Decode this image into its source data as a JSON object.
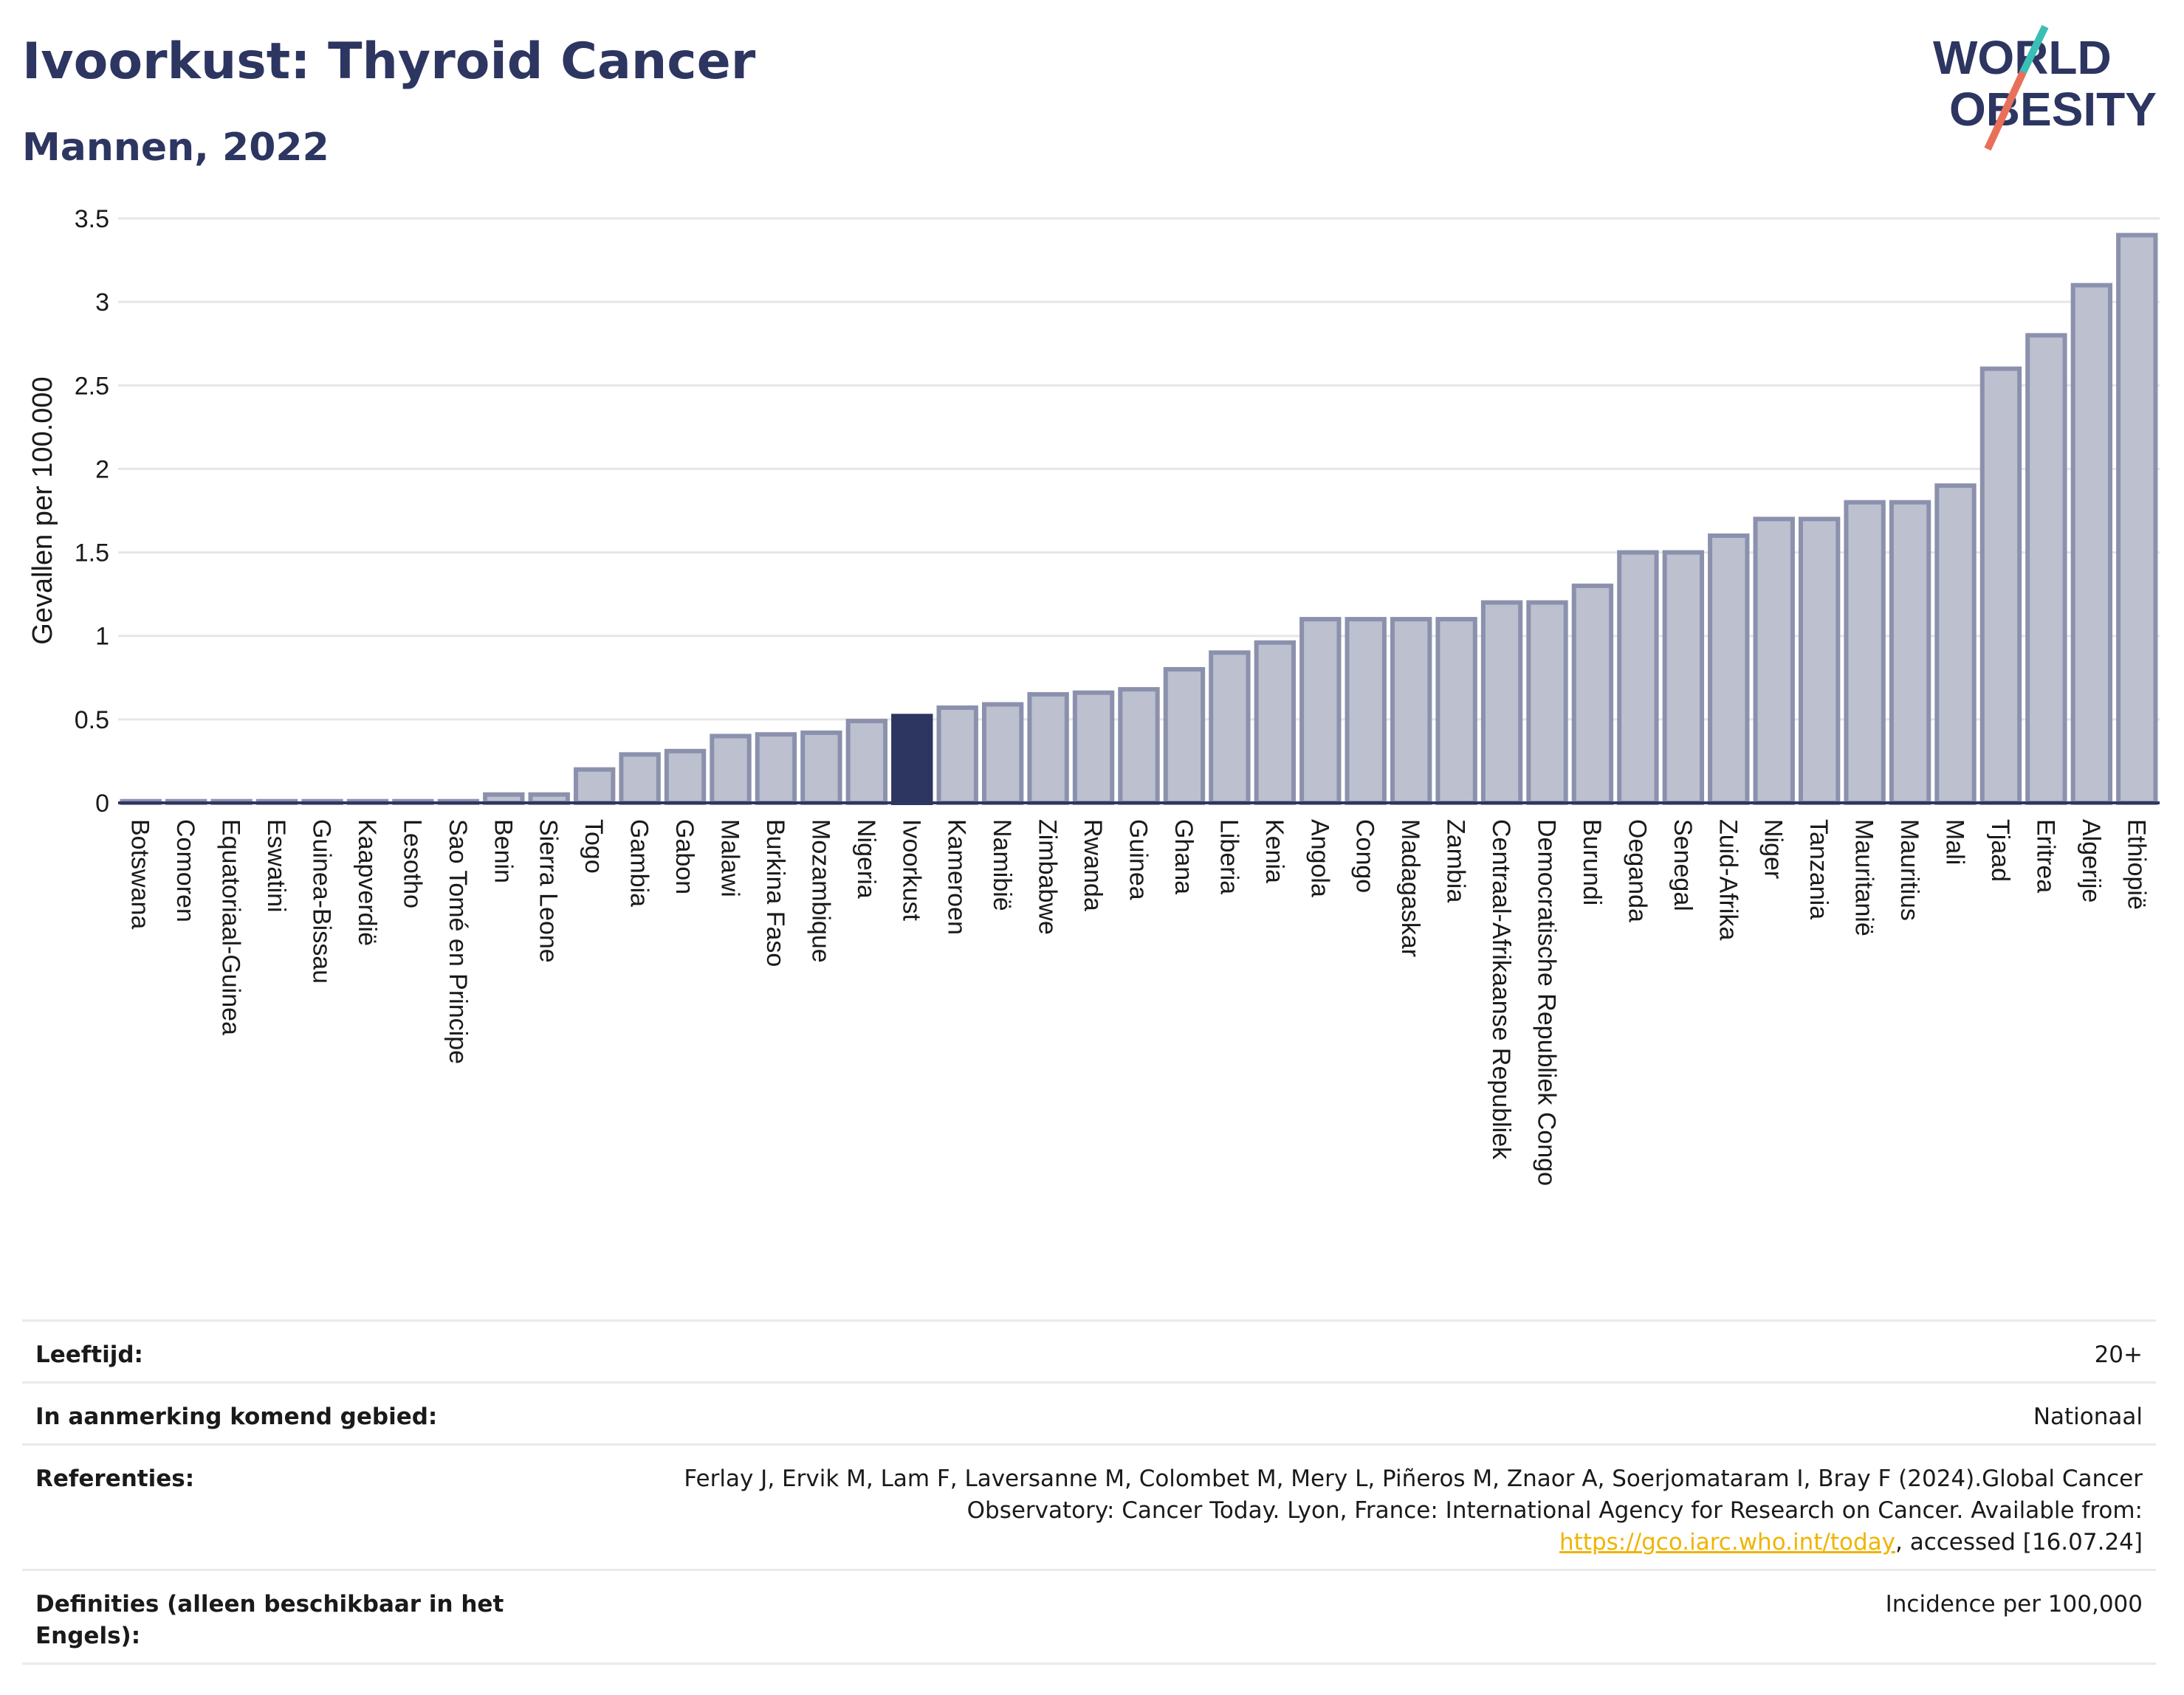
{
  "header": {
    "title": "Ivoorkust: Thyroid Cancer",
    "subtitle": "Mannen, 2022"
  },
  "logo": {
    "line1": "WORLD",
    "line2": "OBESITY",
    "colors": {
      "text": "#2d3561",
      "slash_red": "#e8705a",
      "slash_teal": "#3bbfb5"
    }
  },
  "colors": {
    "bar": "#bcc0cf",
    "bar_stroke": "#8b91ad",
    "highlight": "#2d3561",
    "grid": "#e6e6ea",
    "axis": "#2d3561"
  },
  "chart_data": {
    "type": "bar",
    "ylabel": "Gevallen per 100.000",
    "xlabel": "",
    "ylim": [
      0,
      3.5
    ],
    "yticks": [
      0,
      0.5,
      1,
      1.5,
      2,
      2.5,
      3,
      3.5
    ],
    "ytick_labels": [
      "0",
      "0.5",
      "1",
      "1.5",
      "2",
      "2.5",
      "3",
      "3.5"
    ],
    "grid": true,
    "highlight": "Ivoorkust",
    "categories": [
      "Botswana",
      "Comoren",
      "Equatoriaal-Guinea",
      "Eswatini",
      "Guinea-Bissau",
      "Kaapverdië",
      "Lesotho",
      "Sao Tomé en Principe",
      "Benin",
      "Sierra Leone",
      "Togo",
      "Gambia",
      "Gabon",
      "Malawi",
      "Burkina Faso",
      "Mozambique",
      "Nigeria",
      "Ivoorkust",
      "Kameroen",
      "Namibië",
      "Zimbabwe",
      "Rwanda",
      "Guinea",
      "Ghana",
      "Liberia",
      "Kenia",
      "Angola",
      "Congo",
      "Madagaskar",
      "Zambia",
      "Centraal-Afrikaanse Republiek",
      "Democratische Republiek Congo",
      "Burundi",
      "Oeganda",
      "Senegal",
      "Zuid-Afrika",
      "Niger",
      "Tanzania",
      "Mauritanië",
      "Mauritius",
      "Mali",
      "Tjaad",
      "Eritrea",
      "Algerije",
      "Ethiopië"
    ],
    "values": [
      0.01,
      0.01,
      0.01,
      0.01,
      0.01,
      0.01,
      0.01,
      0.01,
      0.05,
      0.05,
      0.2,
      0.29,
      0.31,
      0.4,
      0.41,
      0.42,
      0.49,
      0.52,
      0.57,
      0.59,
      0.65,
      0.66,
      0.68,
      0.8,
      0.9,
      0.96,
      1.1,
      1.1,
      1.1,
      1.1,
      1.2,
      1.2,
      1.3,
      1.5,
      1.5,
      1.6,
      1.7,
      1.7,
      1.8,
      1.8,
      1.9,
      2.6,
      2.8,
      3.1,
      3.4
    ]
  },
  "meta": [
    {
      "label": "Leeftijd:",
      "value": "20+"
    },
    {
      "label": "In aanmerking komend gebied:",
      "value": "Nationaal"
    },
    {
      "label": "Referenties:",
      "value_pre": "Ferlay J, Ervik M, Lam F, Laversanne M, Colombet M, Mery L, Piñeros M, Znaor A, Soerjomataram I, Bray F (2024).Global Cancer Observatory: Cancer Today. Lyon, France: International Agency for Research on Cancer. Available from: ",
      "link": "https://gco.iarc.who.int/today",
      "value_post": ", accessed [16.07.24]"
    },
    {
      "label": "Definities (alleen beschikbaar in het Engels):",
      "value": "Incidence per 100,000"
    }
  ]
}
